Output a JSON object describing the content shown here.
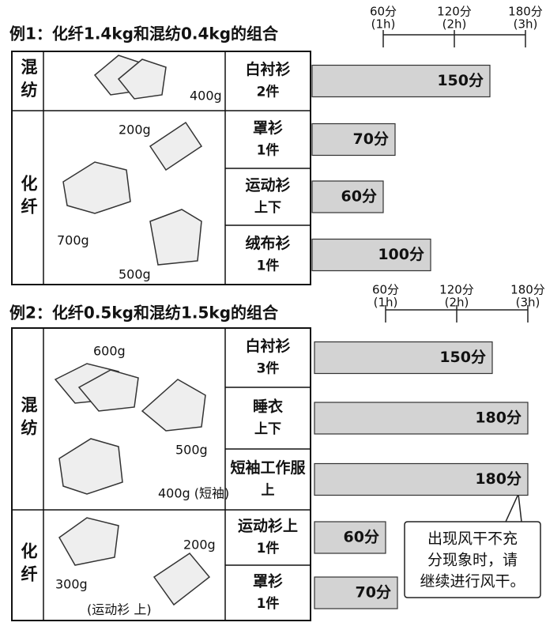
{
  "examples": [
    {
      "title": "例1：化纤1.4kg和混纺0.4kg的组合",
      "xlim": [
        0,
        180
      ],
      "axis_ticks": [
        {
          "value": 60,
          "label": "60分",
          "sub": "(1h)"
        },
        {
          "value": 120,
          "label": "120分",
          "sub": "(2h)"
        },
        {
          "value": 180,
          "label": "180分",
          "sub": "(3h)"
        }
      ],
      "groups": [
        {
          "label": "混纺",
          "weights": [
            "400g"
          ],
          "items": [
            {
              "name": "白衬衫",
              "count": "2件",
              "minutes": 150,
              "minutes_label": "150分"
            }
          ]
        },
        {
          "label": "化纤",
          "weights": [
            "200g",
            "700g",
            "500g"
          ],
          "items": [
            {
              "name": "罩衫",
              "count": "1件",
              "minutes": 70,
              "minutes_label": "70分"
            },
            {
              "name": "运动衫",
              "count": "上下",
              "minutes": 60,
              "minutes_label": "60分"
            },
            {
              "name": "绒布衫",
              "count": "1件",
              "minutes": 100,
              "minutes_label": "100分"
            }
          ]
        }
      ]
    },
    {
      "title": "例2：化纤0.5kg和混纺1.5kg的组合",
      "xlim": [
        0,
        180
      ],
      "axis_ticks": [
        {
          "value": 60,
          "label": "60分",
          "sub": "(1h)"
        },
        {
          "value": 120,
          "label": "120分",
          "sub": "(2h)"
        },
        {
          "value": 180,
          "label": "180分",
          "sub": "(3h)"
        }
      ],
      "groups": [
        {
          "label": "混纺",
          "weights": [
            "600g",
            "500g",
            "400g (短袖)"
          ],
          "items": [
            {
              "name": "白衬衫",
              "count": "3件",
              "minutes": 150,
              "minutes_label": "150分"
            },
            {
              "name": "睡衣",
              "count": "上下",
              "minutes": 180,
              "minutes_label": "180分"
            },
            {
              "name": "短袖工作服",
              "count": "上",
              "minutes": 180,
              "minutes_label": "180分"
            }
          ]
        },
        {
          "label": "化纤",
          "weights": [
            "200g",
            "300g",
            "(运动衫 上)"
          ],
          "items": [
            {
              "name": "运动衫上",
              "count": "1件",
              "minutes": 60,
              "minutes_label": "60分"
            },
            {
              "name": "罩衫",
              "count": "1件",
              "minutes": 70,
              "minutes_label": "70分"
            }
          ]
        }
      ]
    }
  ],
  "note": [
    "出现风干不充",
    "分现象时，请",
    "继续进行风干。"
  ]
}
